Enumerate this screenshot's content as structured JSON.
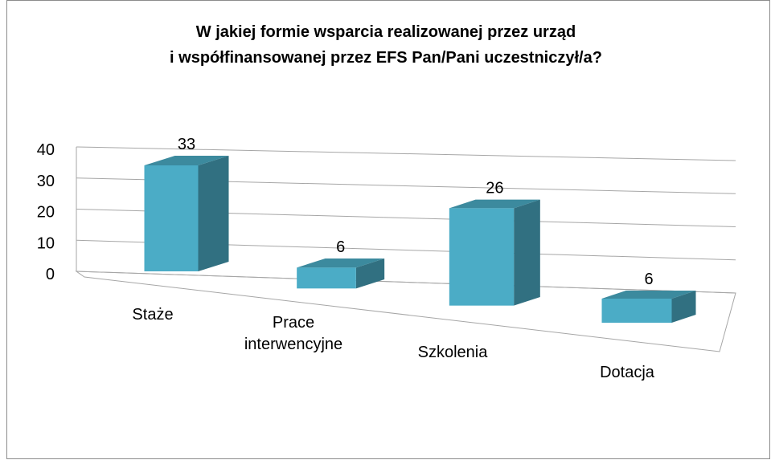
{
  "chart_data": {
    "type": "bar3d",
    "title": [
      "W jakiej formie wsparcia realizowanej przez urząd",
      "i współfinansowanej przez EFS Pan/Pani uczestniczył/a?"
    ],
    "categories": [
      "Staże",
      "Prace interwencyjne",
      "Szkolenia",
      "Dotacja"
    ],
    "values": [
      33,
      6,
      26,
      6
    ],
    "color": "#4bacc6",
    "ylim": [
      0,
      40
    ],
    "yticks": [
      0,
      10,
      20,
      30,
      40
    ],
    "grid": true
  }
}
